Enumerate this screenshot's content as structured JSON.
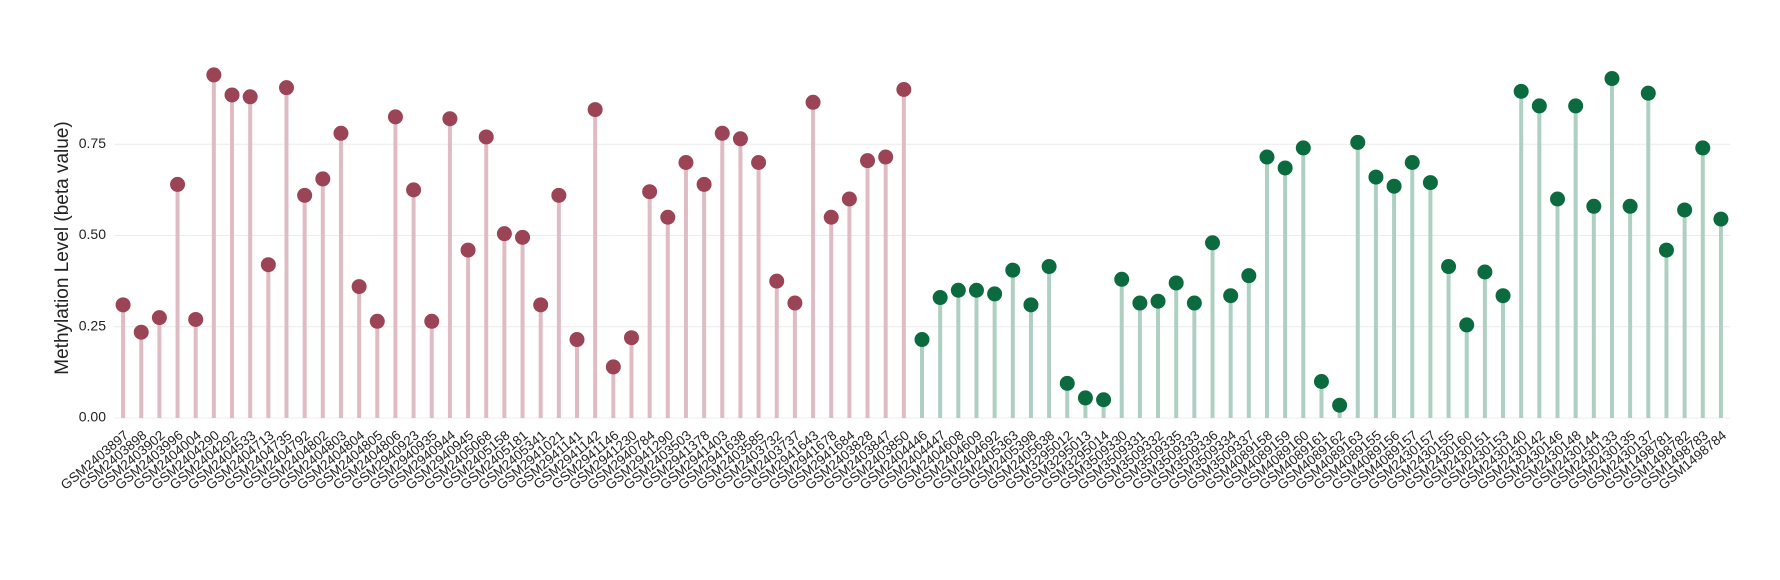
{
  "chart_data": {
    "type": "lollipop",
    "y_label": "Methylation Level (beta value)",
    "ylim": [
      0,
      1
    ],
    "yticks": [
      {
        "value": 0,
        "label": "0.00"
      },
      {
        "value": 0.25,
        "label": "0.25"
      },
      {
        "value": 0.5,
        "label": "0.50"
      },
      {
        "value": 0.75,
        "label": "0.75"
      }
    ],
    "grid": true,
    "categories": [
      "GSM2403897",
      "GSM2403898",
      "GSM2403902",
      "GSM2403996",
      "GSM2404004",
      "GSM2404290",
      "GSM2404292",
      "GSM2404533",
      "GSM2404713",
      "GSM2404735",
      "GSM2404792",
      "GSM2404802",
      "GSM2404803",
      "GSM2404804",
      "GSM2404805",
      "GSM2404806",
      "GSM2940923",
      "GSM2940935",
      "GSM2940944",
      "GSM2940945",
      "GSM2405068",
      "GSM2405158",
      "GSM2405181",
      "GSM2405341",
      "GSM2941021",
      "GSM2941141",
      "GSM2941142",
      "GSM2941146",
      "GSM2941230",
      "GSM2940784",
      "GSM2941290",
      "GSM2403503",
      "GSM2941378",
      "GSM2941403",
      "GSM2941638",
      "GSM2403585",
      "GSM2403732",
      "GSM2403737",
      "GSM2941643",
      "GSM2941678",
      "GSM2941684",
      "GSM2403828",
      "GSM2403847",
      "GSM2403850",
      "GSM2404446",
      "GSM2404447",
      "GSM2404608",
      "GSM2404609",
      "GSM2404692",
      "GSM2405363",
      "GSM2405398",
      "GSM2405638",
      "GSM3295012",
      "GSM3295013",
      "GSM3295014",
      "GSM3509330",
      "GSM3509331",
      "GSM3509332",
      "GSM3509335",
      "GSM3509333",
      "GSM3509336",
      "GSM3509334",
      "GSM3509337",
      "GSM4089158",
      "GSM4089159",
      "GSM4089160",
      "GSM4089161",
      "GSM4089162",
      "GSM4089163",
      "GSM4089155",
      "GSM4089156",
      "GSM4089157",
      "GSM2430157",
      "GSM2430155",
      "GSM2430160",
      "GSM2430151",
      "GSM2430153",
      "GSM2430140",
      "GSM2430142",
      "GSM2430146",
      "GSM2430148",
      "GSM2430144",
      "GSM2430133",
      "GSM2430135",
      "GSM2430137",
      "GSM1498781",
      "GSM1498782",
      "GSM1498783",
      "GSM1498784"
    ],
    "series": [
      {
        "color": "#9b4456",
        "stem_color": "#dfbcc4",
        "values": [
          0.31,
          0.235,
          0.275,
          0.64,
          0.27,
          0.94,
          0.885,
          0.88,
          0.42,
          0.905,
          0.61,
          0.655,
          0.78,
          0.36,
          0.265,
          0.825,
          0.625,
          0.265,
          0.82,
          0.46,
          0.77,
          0.505,
          0.495,
          0.31,
          0.61,
          0.215,
          0.845,
          0.14,
          0.22,
          0.62,
          0.55,
          0.7,
          0.64,
          0.78,
          0.765,
          0.7,
          0.375,
          0.315,
          0.865,
          0.55,
          0.6,
          0.705,
          0.715,
          0.9,
          null,
          null,
          null,
          null,
          null,
          null,
          null,
          null,
          null,
          null,
          null,
          null,
          null,
          null,
          null,
          null,
          null,
          null,
          null,
          null,
          null,
          null,
          null,
          null,
          null,
          null,
          null,
          null,
          null,
          null,
          null,
          null,
          null,
          null,
          null,
          null,
          null,
          null,
          null,
          null,
          null,
          null,
          null,
          null,
          null
        ]
      },
      {
        "color": "#0b6b3f",
        "stem_color": "#aed0c2",
        "values": [
          null,
          null,
          null,
          null,
          null,
          null,
          null,
          null,
          null,
          null,
          null,
          null,
          null,
          null,
          null,
          null,
          null,
          null,
          null,
          null,
          null,
          null,
          null,
          null,
          null,
          null,
          null,
          null,
          null,
          null,
          null,
          null,
          null,
          null,
          null,
          null,
          null,
          null,
          null,
          null,
          null,
          null,
          null,
          null,
          0.215,
          0.33,
          0.35,
          0.35,
          0.34,
          0.405,
          0.31,
          0.415,
          0.095,
          0.055,
          0.05,
          0.38,
          0.315,
          0.32,
          0.37,
          0.315,
          0.48,
          0.335,
          0.39,
          0.715,
          0.685,
          0.74,
          0.1,
          0.035,
          0.755,
          0.66,
          0.635,
          0.7,
          0.645,
          0.415,
          0.255,
          0.4,
          0.335,
          0.895,
          0.855,
          0.6,
          0.855,
          0.58,
          0.93,
          0.58,
          0.89,
          0.46,
          0.57,
          0.74,
          0.545
        ]
      }
    ]
  }
}
